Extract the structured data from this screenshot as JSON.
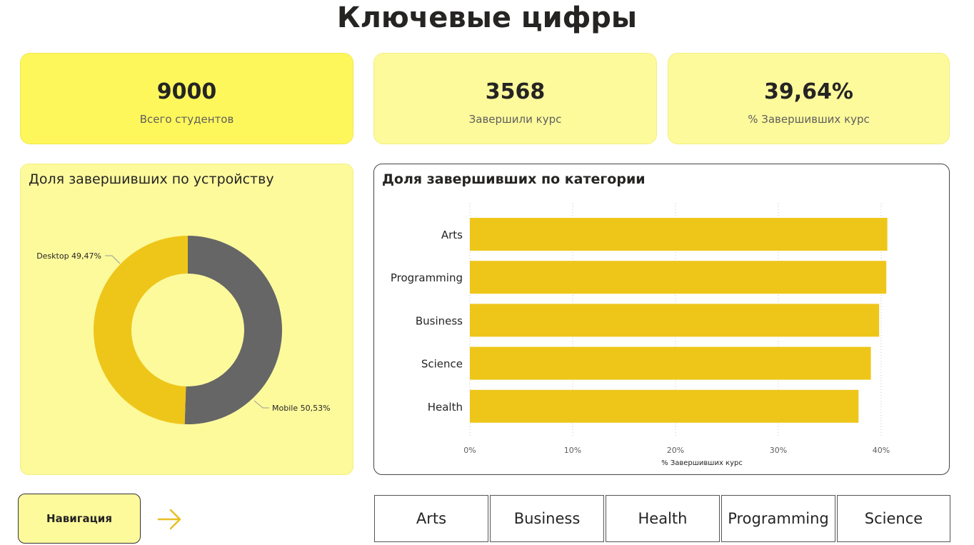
{
  "page": {
    "title": "Ключевые цифры"
  },
  "kpis": [
    {
      "value": "9000",
      "label": "Всего студентов"
    },
    {
      "value": "3568",
      "label": "Завершили курс"
    },
    {
      "value": "39,64%",
      "label": "% Завершивших курс"
    }
  ],
  "donut": {
    "title": "Доля завершивших по устройству",
    "slices": [
      {
        "name": "Desktop",
        "label": "Desktop 49,47%",
        "value": 49.47,
        "color": "#eec61a"
      },
      {
        "name": "Mobile",
        "label": "Mobile 50,53%",
        "value": 50.53,
        "color": "#666666"
      }
    ]
  },
  "bar_panel": {
    "title": "Доля завершивших по категории"
  },
  "chart_data": {
    "type": "bar",
    "orientation": "horizontal",
    "title": "Доля завершивших по категории",
    "categories": [
      "Arts",
      "Programming",
      "Business",
      "Science",
      "Health"
    ],
    "values": [
      40.6,
      40.5,
      39.8,
      39.0,
      37.8
    ],
    "xlabel": "% Завершивших курс",
    "ylabel": "",
    "xlim": [
      0,
      42
    ],
    "x_ticks": [
      "0%",
      "10%",
      "20%",
      "30%",
      "40%"
    ],
    "x_tick_values": [
      0,
      10,
      20,
      30,
      40
    ],
    "grid": true,
    "bar_color": "#eec61a"
  },
  "navigation": {
    "label": "Навигация",
    "arrow_icon": "arrow-right-icon",
    "arrow_color": "#e8be22"
  },
  "category_buttons": [
    "Arts",
    "Business",
    "Health",
    "Programming",
    "Science"
  ]
}
